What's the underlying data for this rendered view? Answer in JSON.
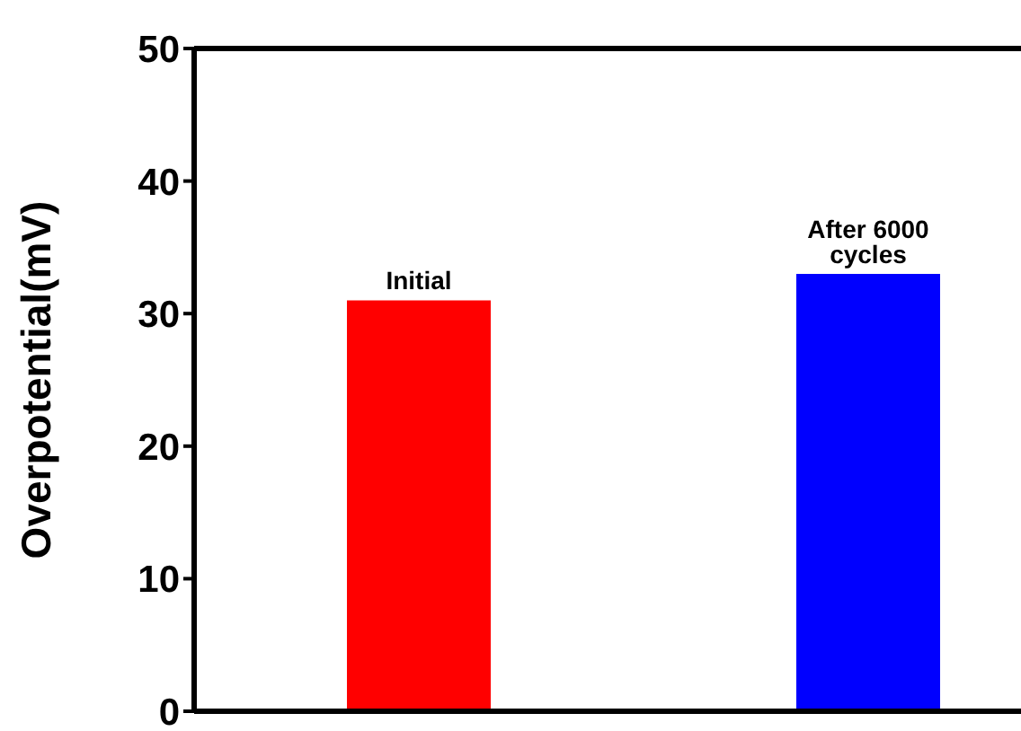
{
  "chart_data": {
    "type": "bar",
    "ylabel": "Overpotential(mV)",
    "categories": [
      "Initial",
      "After 6000 cycles"
    ],
    "values": [
      31,
      33
    ],
    "colors": [
      "#ff0000",
      "#0000ff"
    ],
    "ylim": [
      0,
      50
    ],
    "yticks": [
      0,
      10,
      20,
      30,
      40,
      50
    ],
    "tick_labels": "y"
  }
}
